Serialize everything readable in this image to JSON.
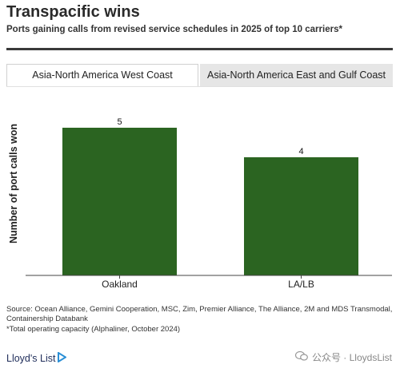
{
  "header": {
    "title": "Transpacific wins",
    "subtitle": "Ports gaining calls from revised service schedules in 2025 of top 10 carriers*"
  },
  "tabs": [
    {
      "label": "Asia-North America West Coast",
      "active": true
    },
    {
      "label": "Asia-North America East and Gulf Coast",
      "active": false
    }
  ],
  "chart_data": {
    "type": "bar",
    "categories": [
      "Oakland",
      "LA/LB"
    ],
    "values": [
      5,
      4
    ],
    "ylabel": "Number of port calls won",
    "xlabel": "",
    "ylim": [
      0,
      6
    ],
    "grid": false,
    "bar_color": "#2b6421"
  },
  "footer": {
    "source": "Source: Ocean Alliance, Gemini Cooperation, MSC, Zim, Premier Alliance, The Alliance, 2M and MDS Transmodal, Containership Databank",
    "note": "*Total operating capacity (Alphaliner, October 2024)",
    "brand": "Lloyd's List",
    "watermark": "公众号 · LloydsList"
  }
}
